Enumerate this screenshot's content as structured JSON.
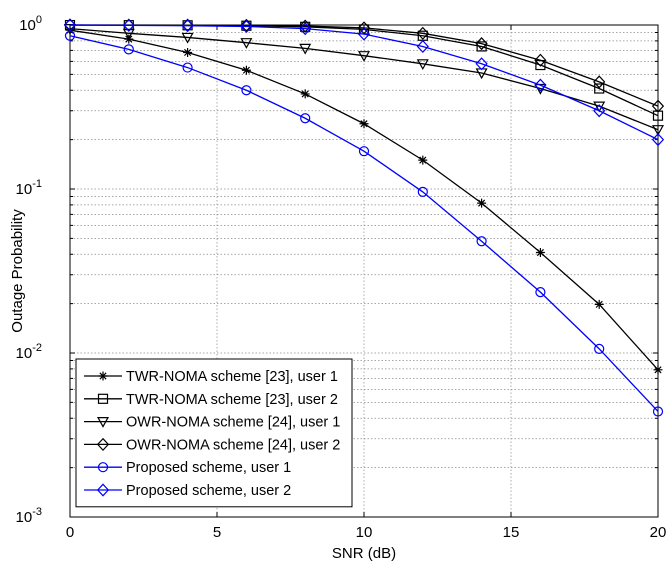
{
  "chart_data": {
    "type": "line",
    "xlabel": "SNR (dB)",
    "ylabel": "Outage Probability",
    "xlim": [
      0,
      20
    ],
    "ylim": [
      0.001,
      1
    ],
    "yscale": "log",
    "grid": true,
    "legend_position": "bottom-left",
    "x_ticks": [
      0,
      5,
      10,
      15,
      20
    ],
    "y_ticks": [
      {
        "value": 0.001,
        "base": "10",
        "exp": "-3"
      },
      {
        "value": 0.01,
        "base": "10",
        "exp": "-2"
      },
      {
        "value": 0.1,
        "base": "10",
        "exp": "-1"
      },
      {
        "value": 1,
        "base": "10",
        "exp": "0"
      }
    ],
    "x": [
      0,
      2,
      4,
      6,
      8,
      10,
      12,
      14,
      16,
      18,
      20
    ],
    "series": [
      {
        "name": "TWR-NOMA scheme [23], user 1",
        "color": "#000000",
        "marker": "star",
        "values": [
          0.93,
          0.82,
          0.68,
          0.53,
          0.38,
          0.25,
          0.15,
          0.082,
          0.041,
          0.0198,
          0.0079
        ]
      },
      {
        "name": "TWR-NOMA scheme [23], user 2",
        "color": "#000000",
        "marker": "square",
        "values": [
          0.999,
          0.998,
          0.996,
          0.99,
          0.975,
          0.94,
          0.86,
          0.74,
          0.57,
          0.41,
          0.28
        ]
      },
      {
        "name": "OWR-NOMA scheme [24], user 1",
        "color": "#000000",
        "marker": "triangle-down",
        "values": [
          0.95,
          0.89,
          0.84,
          0.78,
          0.72,
          0.65,
          0.58,
          0.51,
          0.41,
          0.32,
          0.23
        ]
      },
      {
        "name": "OWR-NOMA scheme [24], user 2",
        "color": "#000000",
        "marker": "diamond",
        "values": [
          1.0,
          0.999,
          0.998,
          0.995,
          0.985,
          0.96,
          0.89,
          0.77,
          0.61,
          0.45,
          0.32
        ]
      },
      {
        "name": "Proposed scheme, user 1",
        "color": "#0000ff",
        "marker": "circle",
        "values": [
          0.86,
          0.71,
          0.55,
          0.4,
          0.27,
          0.17,
          0.096,
          0.048,
          0.0235,
          0.0106,
          0.0044
        ]
      },
      {
        "name": "Proposed scheme, user 2",
        "color": "#0000ff",
        "marker": "diamond",
        "values": [
          1.0,
          0.995,
          0.99,
          0.98,
          0.95,
          0.88,
          0.74,
          0.58,
          0.43,
          0.3,
          0.2
        ]
      }
    ]
  }
}
